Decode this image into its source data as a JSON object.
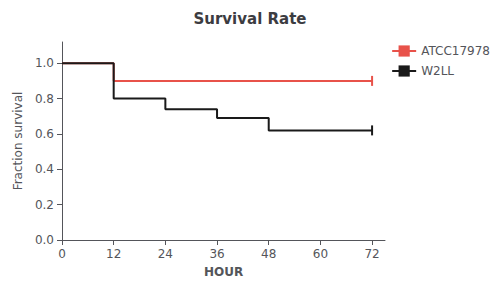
{
  "chart_data": {
    "type": "line",
    "title": "Survival Rate",
    "xlabel": "HOUR",
    "ylabel": "Fraction survival",
    "series": [
      {
        "name": "ATCC17978",
        "color": "#E8524A",
        "marker": "|",
        "x": [
          0,
          12,
          12,
          72,
          72
        ],
        "values": [
          1.0,
          1.0,
          0.9,
          0.9,
          0.9
        ]
      },
      {
        "name": "W2LL",
        "color": "#1a1a1a",
        "marker": "|",
        "x": [
          0,
          12,
          12,
          24,
          24,
          36,
          36,
          48,
          48,
          72
        ],
        "values": [
          1.0,
          1.0,
          0.8,
          0.8,
          0.74,
          0.74,
          0.69,
          0.69,
          0.62,
          0.62
        ]
      }
    ],
    "xlim": [
      0,
      75
    ],
    "ylim": [
      0.0,
      1.12
    ],
    "xticks": [
      0,
      12,
      24,
      36,
      48,
      60,
      72
    ],
    "yticks": [
      {
        "value": 0.0,
        "label": "0.0"
      },
      0.2,
      0.4,
      0.6,
      0.8,
      {
        "value": 1.0,
        "label": "1.0"
      }
    ],
    "grid": false,
    "legend": "right"
  }
}
